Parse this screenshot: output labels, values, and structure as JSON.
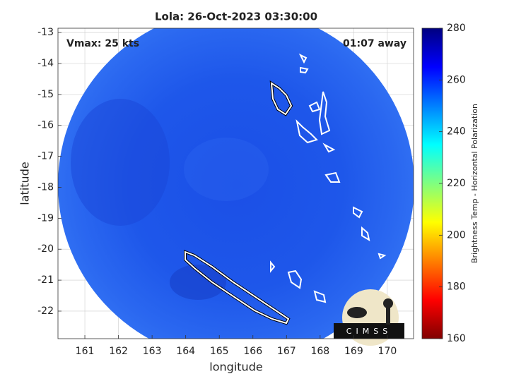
{
  "chart_data": {
    "type": "map",
    "title": "Lola: 26-Oct-2023 03:30:00",
    "annotations": [
      "Vmax: 25 kts",
      "01:07 away"
    ],
    "xlabel": "longitude",
    "ylabel": "latitude",
    "xlim": [
      160.2,
      170.78
    ],
    "xticks": [
      161,
      162,
      163,
      164,
      165,
      166,
      167,
      168,
      169,
      170
    ],
    "ylim": [
      -22.89,
      -12.86
    ],
    "yticks": [
      -22,
      -21,
      -20,
      -19,
      -18,
      -17,
      -16,
      -15,
      -14,
      -13
    ],
    "grid": true,
    "colorbar": {
      "label": "Brightness Temp - Horizontal Polarization",
      "lim": [
        160,
        280
      ],
      "ticks": [
        160,
        180,
        200,
        220,
        240,
        260,
        280
      ],
      "colormap": "jet"
    },
    "logo_text": "CIMSS"
  }
}
